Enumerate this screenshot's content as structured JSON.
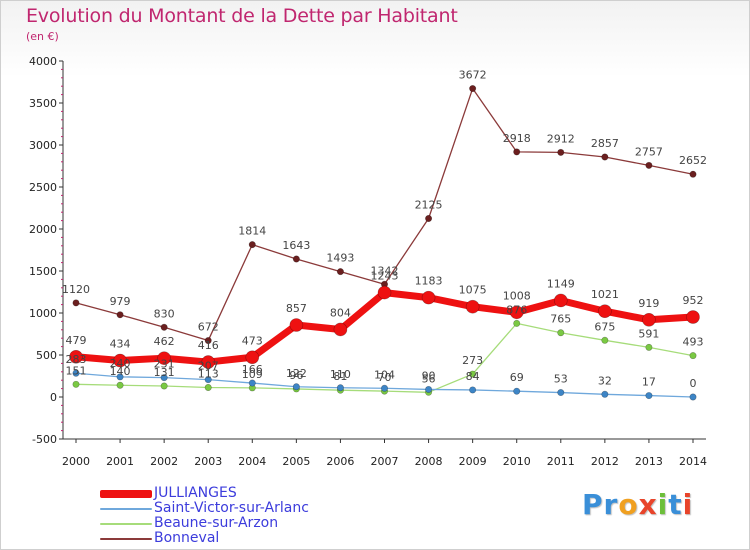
{
  "title": "Evolution du Montant de la Dette par Habitant",
  "subtitle": "(en €)",
  "logo": {
    "text": "Proxiti",
    "letters": [
      "P",
      "r",
      "o",
      "x",
      "i",
      "t",
      "i"
    ],
    "colors": [
      "#3a8fd8",
      "#3a8fd8",
      "#f0a020",
      "#e8442a",
      "#6cbf3a",
      "#3a8fd8",
      "#e8442a"
    ]
  },
  "chart_data": {
    "type": "line",
    "title": "Evolution du Montant de la Dette par Habitant",
    "subtitle": "(en €)",
    "x": [
      "2000",
      "2001",
      "2002",
      "2003",
      "2004",
      "2005",
      "2006",
      "2007",
      "2008",
      "2009",
      "2010",
      "2011",
      "2012",
      "2013",
      "2014"
    ],
    "ylim": [
      -500,
      4000
    ],
    "yticks": [
      -500,
      0,
      500,
      1000,
      1500,
      2000,
      2500,
      3000,
      3500,
      4000
    ],
    "grid": false,
    "legend_position": "bottom-left",
    "series": [
      {
        "name": "JULLIANGES",
        "color": "#ee1111",
        "marker_color": "#ee1111",
        "values": [
          479,
          434,
          462,
          416,
          473,
          857,
          804,
          1243,
          1183,
          1075,
          1008,
          1149,
          1021,
          919,
          952
        ],
        "labels": [
          "479",
          "434",
          "462",
          "416",
          "473",
          "857",
          "804",
          "1243",
          "1183",
          "1075",
          "1008",
          "1149",
          "1021",
          "919",
          "952"
        ]
      },
      {
        "name": "Saint-Victor-sur-Arlanc",
        "color": "#6fa8dc",
        "marker_color": "#3d85c6",
        "values": [
          283,
          240,
          231,
          207,
          166,
          122,
          110,
          104,
          90,
          84,
          69,
          53,
          32,
          17,
          0
        ],
        "labels": [
          "283",
          "240",
          "231",
          "207",
          "166",
          "122",
          "110",
          "104",
          "90",
          "84",
          "69",
          "53",
          "32",
          "17",
          "0"
        ]
      },
      {
        "name": "Beaune-sur-Arzon",
        "color": "#a6dc7a",
        "marker_color": "#7ac943",
        "values": [
          151,
          140,
          131,
          113,
          109,
          96,
          81,
          70,
          56,
          273,
          876,
          765,
          675,
          591,
          493
        ],
        "labels": [
          "151",
          "140",
          "131",
          "113",
          "109",
          "96",
          "81",
          "70",
          "56",
          "273",
          "876",
          "765",
          "675",
          "591",
          "493"
        ]
      },
      {
        "name": "Bonneval",
        "color": "#8b3a3a",
        "marker_color": "#6b1f1f",
        "values": [
          1120,
          979,
          830,
          672,
          1814,
          1643,
          1493,
          1342,
          2125,
          3672,
          2918,
          2912,
          2857,
          2757,
          2652
        ],
        "labels": [
          "1120",
          "979",
          "830",
          "672",
          "1814",
          "1643",
          "1493",
          "1342",
          "2125",
          "3672",
          "2918",
          "2912",
          "2857",
          "2757",
          "2652"
        ]
      }
    ]
  }
}
